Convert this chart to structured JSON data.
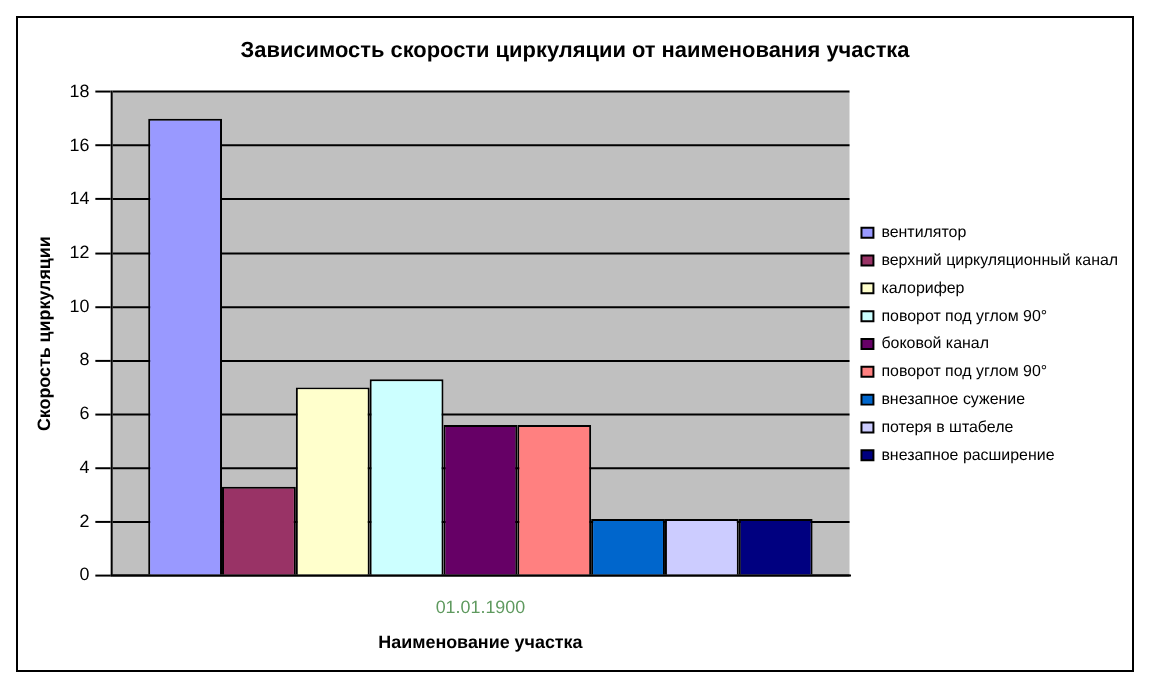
{
  "chart_data": {
    "type": "bar",
    "title": "Зависимость скорости циркуляции от наименования участка",
    "xlabel": "Наименование участка",
    "ylabel": "Скорость циркуляции",
    "categories": [
      "01.01.1900"
    ],
    "series": [
      {
        "name": "вентилятор",
        "color": "#9999ff",
        "values": [
          17
        ]
      },
      {
        "name": "верхний циркуляционный канал",
        "color": "#993366",
        "values": [
          3.3
        ]
      },
      {
        "name": "калорифер",
        "color": "#ffffcc",
        "values": [
          7
        ]
      },
      {
        "name": "поворот под углом 90°",
        "color": "#ccffff",
        "values": [
          7.3
        ]
      },
      {
        "name": "боковой канал",
        "color": "#660066",
        "values": [
          5.6
        ]
      },
      {
        "name": "поворот под углом 90°",
        "color": "#ff8080",
        "values": [
          5.6
        ]
      },
      {
        "name": "внезапное сужение",
        "color": "#0066cc",
        "values": [
          2.1
        ]
      },
      {
        "name": "потеря в штабеле",
        "color": "#ccccff",
        "values": [
          2.1
        ]
      },
      {
        "name": "внезапное расширение",
        "color": "#000080",
        "values": [
          2.1
        ]
      }
    ],
    "ylim": [
      0,
      18
    ],
    "yticks": [
      0,
      2,
      4,
      6,
      8,
      10,
      12,
      14,
      16,
      18
    ],
    "grid": "y",
    "legend": "right"
  }
}
